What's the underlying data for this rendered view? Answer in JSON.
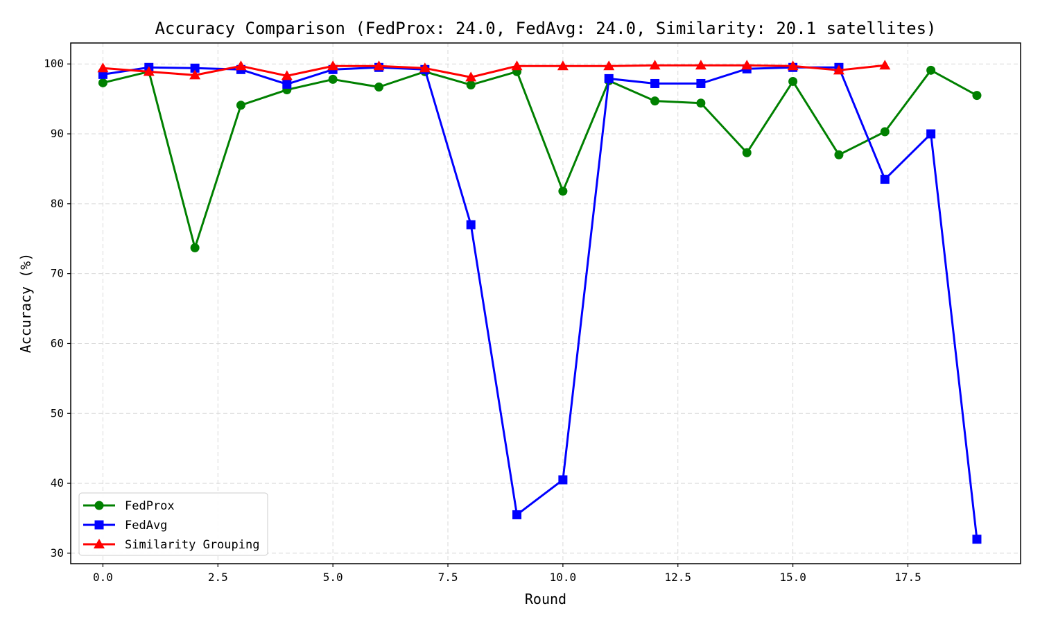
{
  "chart_data": {
    "type": "line",
    "title": "Accuracy Comparison (FedProx: 24.0, FedAvg: 24.0, Similarity: 20.1 satellites)",
    "xlabel": "Round",
    "ylabel": "Accuracy (%)",
    "xlim": [
      -0.7,
      19.95
    ],
    "ylim": [
      28.5,
      103
    ],
    "xticks": [
      0.0,
      2.5,
      5.0,
      7.5,
      10.0,
      12.5,
      15.0,
      17.5
    ],
    "xtick_labels": [
      "0.0",
      "2.5",
      "5.0",
      "7.5",
      "10.0",
      "12.5",
      "15.0",
      "17.5"
    ],
    "yticks": [
      30,
      40,
      50,
      60,
      70,
      80,
      90,
      100
    ],
    "ytick_labels": [
      "30",
      "40",
      "50",
      "60",
      "70",
      "80",
      "90",
      "100"
    ],
    "grid": true,
    "legend_position": "lower-left",
    "series": [
      {
        "name": "FedProx",
        "color": "#008000",
        "marker": "circle",
        "x": [
          0,
          1,
          2,
          3,
          4,
          5,
          6,
          7,
          8,
          9,
          10,
          11,
          12,
          13,
          14,
          15,
          16,
          17,
          18,
          19
        ],
        "values": [
          97.3,
          98.9,
          73.7,
          94.1,
          96.3,
          97.8,
          96.7,
          98.9,
          97.0,
          98.9,
          81.8,
          97.6,
          94.7,
          94.4,
          87.3,
          97.5,
          87.0,
          90.3,
          99.1,
          95.5
        ]
      },
      {
        "name": "FedAvg",
        "color": "#0000ff",
        "marker": "square",
        "x": [
          0,
          1,
          2,
          3,
          4,
          5,
          6,
          7,
          8,
          9,
          10,
          11,
          12,
          13,
          14,
          15,
          16,
          17,
          18,
          19
        ],
        "values": [
          98.5,
          99.5,
          99.4,
          99.2,
          97.1,
          99.2,
          99.5,
          99.2,
          77.0,
          35.5,
          40.5,
          97.9,
          97.2,
          97.2,
          99.3,
          99.5,
          99.5,
          83.5,
          90.0,
          32.0
        ]
      },
      {
        "name": "Similarity Grouping",
        "color": "#ff0000",
        "marker": "triangle",
        "x": [
          0,
          1,
          2,
          3,
          4,
          5,
          6,
          7,
          8,
          9,
          10,
          11,
          12,
          13,
          14,
          15,
          16,
          17
        ],
        "values": [
          99.4,
          98.9,
          98.4,
          99.7,
          98.3,
          99.7,
          99.7,
          99.4,
          98.1,
          99.7,
          99.7,
          99.7,
          99.8,
          99.8,
          99.8,
          99.7,
          99.1,
          99.8
        ]
      }
    ]
  }
}
